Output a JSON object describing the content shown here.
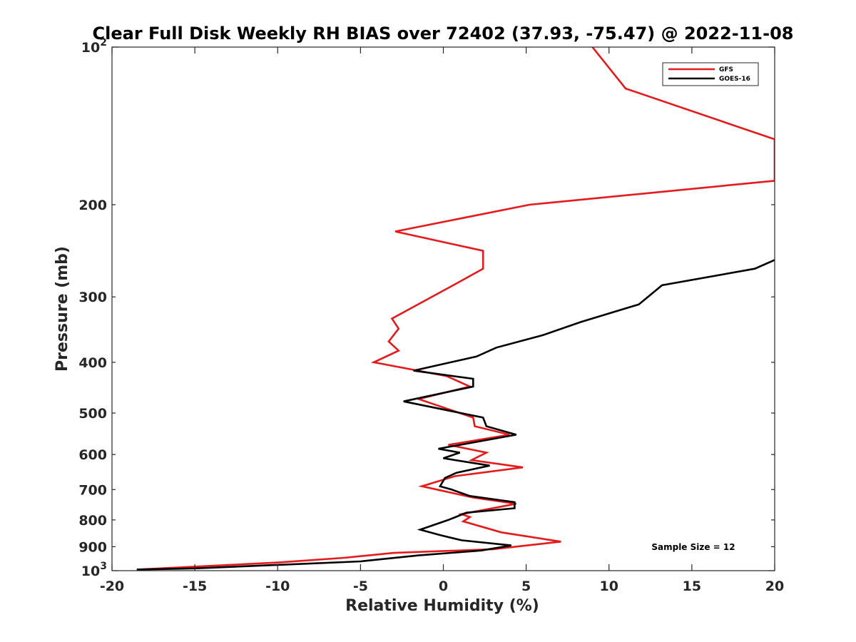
{
  "chart_data": {
    "type": "line",
    "title": "Clear Full Disk Weekly RH BIAS over 72402 (37.93, -75.47) @ 2022-11-08",
    "xlabel": "Relative Humidity (%)",
    "ylabel": "Pressure (mb)",
    "xlim": [
      -20,
      20
    ],
    "ylim": [
      1000,
      100
    ],
    "yscale": "log",
    "y_reversed": true,
    "grid": false,
    "legend_position": "top-right",
    "x_ticks": [
      "-20",
      "-15",
      "-10",
      "-5",
      "0",
      "5",
      "10",
      "15",
      "20"
    ],
    "x_tick_values": [
      -20,
      -15,
      -10,
      -5,
      0,
      5,
      10,
      15,
      20
    ],
    "y_ticks_major": [
      {
        "value": 100,
        "base": "10",
        "exp": "2"
      },
      {
        "value": 1000,
        "base": "10",
        "exp": "3"
      }
    ],
    "y_ticks_minor": [
      {
        "value": 200,
        "label": "200"
      },
      {
        "value": 300,
        "label": "300"
      },
      {
        "value": 400,
        "label": "400"
      },
      {
        "value": 500,
        "label": "500"
      },
      {
        "value": 600,
        "label": "600"
      },
      {
        "value": 700,
        "label": "700"
      },
      {
        "value": 800,
        "label": "800"
      },
      {
        "value": 900,
        "label": "900"
      }
    ],
    "annotation": "Sample Size = 12",
    "series": [
      {
        "name": "GFS",
        "color": "#e41a1c",
        "points": [
          [
            9.0,
            100
          ],
          [
            11.0,
            120
          ],
          [
            20.0,
            150
          ],
          [
            20.0,
            180
          ],
          [
            5.2,
            200
          ],
          [
            -2.9,
            225
          ],
          [
            2.4,
            245
          ],
          [
            2.4,
            265
          ],
          [
            0.6,
            285
          ],
          [
            -3.1,
            330
          ],
          [
            -2.7,
            345
          ],
          [
            -3.3,
            365
          ],
          [
            -2.7,
            380
          ],
          [
            -4.2,
            400
          ],
          [
            0.2,
            425
          ],
          [
            1.6,
            445
          ],
          [
            -1.5,
            470
          ],
          [
            1.8,
            510
          ],
          [
            1.9,
            530
          ],
          [
            4.0,
            550
          ],
          [
            0.3,
            575
          ],
          [
            2.6,
            595
          ],
          [
            1.7,
            615
          ],
          [
            4.8,
            635
          ],
          [
            0.7,
            660
          ],
          [
            -1.3,
            690
          ],
          [
            1.8,
            725
          ],
          [
            4.4,
            745
          ],
          [
            1.1,
            780
          ],
          [
            1.6,
            790
          ],
          [
            1.2,
            805
          ],
          [
            3.5,
            845
          ],
          [
            7.1,
            880
          ],
          [
            3.0,
            910
          ],
          [
            -3.0,
            925
          ],
          [
            -6.0,
            945
          ],
          [
            -10.0,
            965
          ],
          [
            -18.5,
            995
          ]
        ]
      },
      {
        "name": "GOES-16",
        "color": "#000000",
        "points": [
          [
            20.0,
            255
          ],
          [
            18.8,
            265
          ],
          [
            13.2,
            285
          ],
          [
            11.8,
            310
          ],
          [
            8.3,
            335
          ],
          [
            6.0,
            355
          ],
          [
            3.2,
            375
          ],
          [
            2.0,
            390
          ],
          [
            -1.8,
            415
          ],
          [
            1.8,
            430
          ],
          [
            1.8,
            445
          ],
          [
            -2.4,
            475
          ],
          [
            2.4,
            510
          ],
          [
            2.6,
            530
          ],
          [
            4.4,
            550
          ],
          [
            -0.3,
            585
          ],
          [
            1.0,
            595
          ],
          [
            0.0,
            610
          ],
          [
            2.8,
            630
          ],
          [
            0.8,
            650
          ],
          [
            0.1,
            665
          ],
          [
            -0.2,
            690
          ],
          [
            0.5,
            700
          ],
          [
            1.6,
            720
          ],
          [
            4.3,
            740
          ],
          [
            4.3,
            760
          ],
          [
            1.4,
            775
          ],
          [
            0.3,
            800
          ],
          [
            -1.4,
            835
          ],
          [
            -0.2,
            855
          ],
          [
            1.1,
            875
          ],
          [
            4.1,
            895
          ],
          [
            2.3,
            915
          ],
          [
            -1.5,
            935
          ],
          [
            -5.0,
            960
          ],
          [
            -10.0,
            975
          ],
          [
            -15.0,
            990
          ],
          [
            -18.5,
            995
          ]
        ]
      }
    ]
  }
}
